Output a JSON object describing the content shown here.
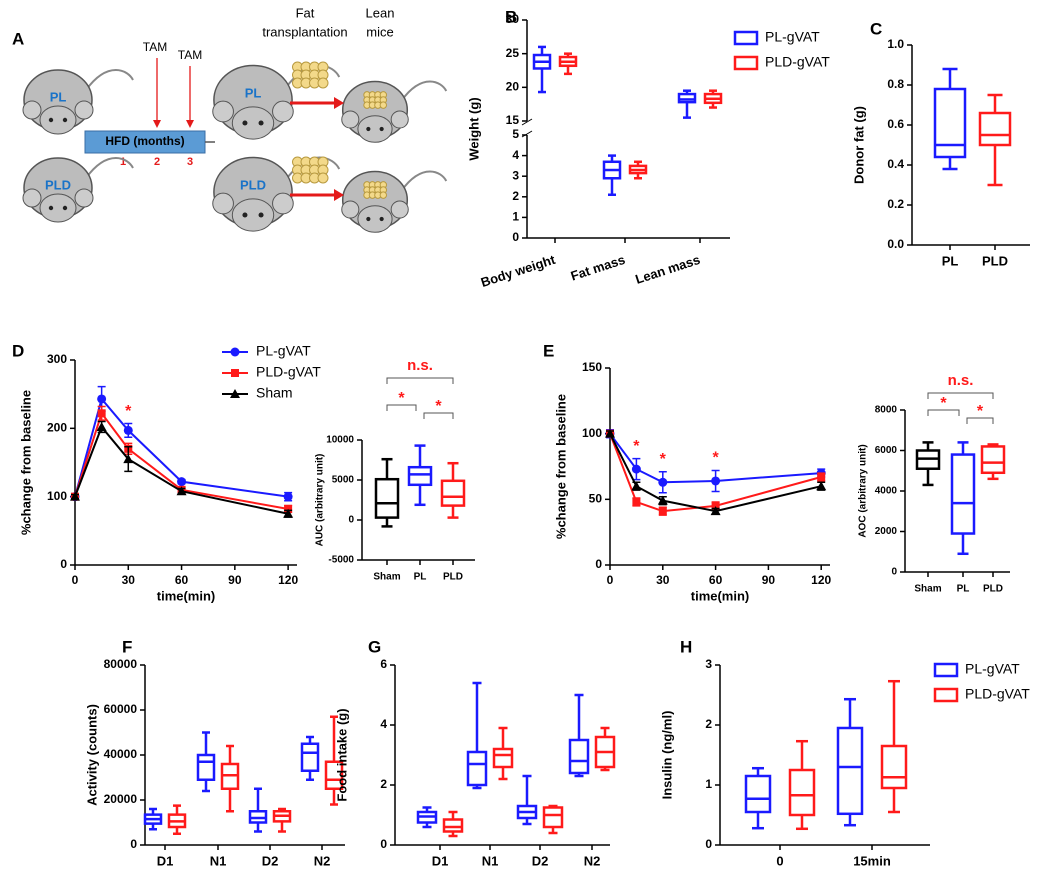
{
  "diagram": {
    "panel": "A",
    "tam": [
      "TAM",
      "TAM"
    ],
    "hfd": "HFD (months)",
    "months": [
      "1",
      "2",
      "3"
    ],
    "fat_transplantation": [
      "Fat",
      "transplantation"
    ],
    "lean_mice": [
      "Lean",
      "mice"
    ],
    "donors": [
      "PL",
      "PLD"
    ],
    "recipients": [
      "PL",
      "PLD"
    ]
  },
  "chart_data": [
    {
      "type": "box",
      "panel": "B",
      "ylabel": "Weight (g)",
      "categories": [
        "Body weight",
        "Fat mass",
        "Lean mass"
      ],
      "series": [
        {
          "name": "PL-gVAT",
          "color": "#1a1aff",
          "values": [
            [
              19.3,
              22.8,
              23.8,
              24.8,
              26
            ],
            [
              2.1,
              2.9,
              3.3,
              3.7,
              4.0
            ],
            [
              15.5,
              17.8,
              18.2,
              19,
              19.5
            ]
          ]
        },
        {
          "name": "PLD-gVAT",
          "color": "#ff1a1a",
          "values": [
            [
              22,
              23.2,
              23.8,
              24.5,
              25
            ],
            [
              2.9,
              3.15,
              3.3,
              3.5,
              3.7
            ],
            [
              17,
              17.7,
              18.3,
              19,
              19.5
            ]
          ]
        }
      ],
      "ylim": [
        0,
        30
      ],
      "axis_break": [
        5,
        15
      ],
      "yticks": [
        0,
        1,
        2,
        3,
        4,
        5,
        15,
        20,
        25,
        30
      ],
      "legend": "upper right"
    },
    {
      "type": "box",
      "panel": "C",
      "ylabel": "Donor fat (g)",
      "categories": [
        "PL",
        "PLD"
      ],
      "values": [
        [
          0.38,
          0.44,
          0.5,
          0.78,
          0.88
        ],
        [
          0.3,
          0.5,
          0.55,
          0.66,
          0.75
        ]
      ],
      "colors": [
        "#1a1aff",
        "#ff1a1a"
      ],
      "ylim": [
        0,
        1
      ],
      "yticks": [
        {
          "value": 0,
          "label": "0.0"
        },
        {
          "value": 0.2,
          "label": "0.2"
        },
        {
          "value": 0.4,
          "label": "0.4"
        },
        {
          "value": 0.6,
          "label": "0.6"
        },
        {
          "value": 0.8,
          "label": "0.8"
        },
        {
          "value": 1,
          "label": "1.0"
        }
      ]
    },
    {
      "type": "line",
      "panel": "D",
      "xlabel": "time(min)",
      "ylabel": "%change from baseline",
      "x": [
        0,
        15,
        30,
        60,
        120
      ],
      "series": [
        {
          "name": "PL-gVAT",
          "color": "#1a1aff",
          "marker": "circle",
          "values": [
            100,
            243,
            197,
            122,
            100
          ],
          "errors": [
            3,
            18,
            10,
            3,
            6
          ]
        },
        {
          "name": "PLD-gVAT",
          "color": "#ff1a1a",
          "marker": "square",
          "values": [
            100,
            222,
            170,
            110,
            82
          ],
          "errors": [
            3,
            10,
            8,
            4,
            5
          ]
        },
        {
          "name": "Sham",
          "color": "#000000",
          "marker": "triangle",
          "values": [
            100,
            202,
            155,
            108,
            75
          ],
          "errors": [
            3,
            8,
            18,
            4,
            5
          ]
        }
      ],
      "xlim": [
        0,
        125
      ],
      "xticks": [
        0,
        30,
        60,
        90,
        120
      ],
      "ylim": [
        0,
        300
      ],
      "yticks": [
        0,
        100,
        200,
        300
      ],
      "annotations": [
        {
          "text": "*",
          "x": 30
        }
      ],
      "legend": "top"
    },
    {
      "type": "box",
      "ylabel": "AUC (arbitrary unit)",
      "categories": [
        "Sham",
        "PL",
        "PLD"
      ],
      "values": [
        [
          -800,
          300,
          2100,
          5100,
          7600
        ],
        [
          1900,
          4400,
          5700,
          6600,
          9300
        ],
        [
          300,
          1800,
          2900,
          4900,
          7100
        ]
      ],
      "colors": [
        "#000000",
        "#1a1aff",
        "#ff1a1a"
      ],
      "ylim": [
        -5000,
        10000
      ],
      "yticks": [
        -5000,
        0,
        5000,
        10000
      ],
      "annotations": [
        "n.s.",
        "*",
        "*"
      ]
    },
    {
      "type": "line",
      "panel": "E",
      "xlabel": "time(min)",
      "ylabel": "%change from baseline",
      "x": [
        0,
        15,
        30,
        60,
        120
      ],
      "series": [
        {
          "name": "PL-gVAT",
          "color": "#1a1aff",
          "marker": "circle",
          "values": [
            100,
            73,
            63,
            64,
            70
          ],
          "errors": [
            3,
            8,
            8,
            8,
            3
          ]
        },
        {
          "name": "PLD-gVAT",
          "color": "#ff1a1a",
          "marker": "square",
          "values": [
            100,
            48,
            41,
            45,
            67
          ],
          "errors": [
            2,
            3,
            3,
            3,
            3
          ]
        },
        {
          "name": "Sham",
          "color": "#000000",
          "marker": "triangle",
          "values": [
            100,
            60,
            49,
            41,
            60
          ],
          "errors": [
            2,
            3,
            3,
            2,
            3
          ]
        }
      ],
      "xlim": [
        0,
        125
      ],
      "xticks": [
        0,
        30,
        60,
        90,
        120
      ],
      "ylim": [
        0,
        150
      ],
      "yticks": [
        0,
        50,
        100,
        150
      ],
      "annotations": [
        {
          "text": "*",
          "x": 15
        },
        {
          "text": "*",
          "x": 30
        },
        {
          "text": "*",
          "x": 60
        }
      ]
    },
    {
      "type": "box",
      "ylabel": "AOC (arbitrary unit)",
      "categories": [
        "Sham",
        "PL",
        "PLD"
      ],
      "values": [
        [
          4300,
          5100,
          5600,
          6000,
          6400
        ],
        [
          900,
          1900,
          3400,
          5800,
          6400
        ],
        [
          4600,
          4900,
          5400,
          6200,
          6300
        ]
      ],
      "colors": [
        "#000000",
        "#1a1aff",
        "#ff1a1a"
      ],
      "ylim": [
        0,
        8000
      ],
      "yticks": [
        0,
        2000,
        4000,
        6000,
        8000
      ],
      "annotations": [
        "n.s.",
        "*",
        "*"
      ]
    },
    {
      "type": "box",
      "panel": "F",
      "ylabel": "Activity (counts)",
      "categories": [
        "D1",
        "N1",
        "D2",
        "N2"
      ],
      "series": [
        {
          "name": "PL-gVAT",
          "color": "#1a1aff",
          "values": [
            [
              7000,
              9500,
              11500,
              13500,
              16000
            ],
            [
              24000,
              29000,
              37000,
              40000,
              50000
            ],
            [
              6000,
              10000,
              12000,
              15000,
              25000
            ],
            [
              29000,
              33000,
              41000,
              45000,
              48000
            ]
          ]
        },
        {
          "name": "PLD-gVAT",
          "color": "#ff1a1a",
          "values": [
            [
              5000,
              8000,
              10500,
              13500,
              17500
            ],
            [
              15000,
              25000,
              31000,
              36000,
              44000
            ],
            [
              6000,
              10500,
              13000,
              15000,
              16000
            ],
            [
              18000,
              25000,
              29000,
              37000,
              57000
            ]
          ]
        }
      ],
      "ylim": [
        0,
        80000
      ],
      "yticks": [
        0,
        20000,
        40000,
        60000,
        80000
      ]
    },
    {
      "type": "box",
      "panel": "G",
      "ylabel": "Food intake (g)",
      "categories": [
        "D1",
        "N1",
        "D2",
        "N2"
      ],
      "series": [
        {
          "name": "PL-gVAT",
          "color": "#1a1aff",
          "values": [
            [
              0.6,
              0.75,
              0.95,
              1.1,
              1.25
            ],
            [
              1.9,
              2.0,
              2.7,
              3.1,
              5.4
            ],
            [
              0.7,
              0.9,
              1.1,
              1.3,
              2.3
            ],
            [
              2.3,
              2.4,
              2.8,
              3.5,
              5.0
            ]
          ]
        },
        {
          "name": "PLD-gVAT",
          "color": "#ff1a1a",
          "values": [
            [
              0.3,
              0.45,
              0.6,
              0.85,
              1.1
            ],
            [
              2.2,
              2.6,
              3.0,
              3.2,
              3.9
            ],
            [
              0.4,
              0.6,
              1.0,
              1.25,
              1.3
            ],
            [
              2.5,
              2.6,
              3.1,
              3.6,
              3.9
            ]
          ]
        }
      ],
      "ylim": [
        0,
        6
      ],
      "yticks": [
        0,
        2,
        4,
        6
      ]
    },
    {
      "type": "box",
      "panel": "H",
      "ylabel": "Insulin (ng/ml)",
      "categories": [
        "0",
        "15min"
      ],
      "series": [
        {
          "name": "PL-gVAT",
          "color": "#1a1aff",
          "values": [
            [
              0.28,
              0.55,
              0.77,
              1.15,
              1.28
            ],
            [
              0.33,
              0.52,
              1.3,
              1.95,
              2.43
            ]
          ]
        },
        {
          "name": "PLD-gVAT",
          "color": "#ff1a1a",
          "values": [
            [
              0.27,
              0.5,
              0.83,
              1.25,
              1.73
            ],
            [
              0.55,
              0.95,
              1.13,
              1.65,
              2.73
            ]
          ]
        }
      ],
      "ylim": [
        0,
        3
      ],
      "yticks": [
        0,
        1,
        2,
        3
      ],
      "legend": "upper right"
    }
  ]
}
